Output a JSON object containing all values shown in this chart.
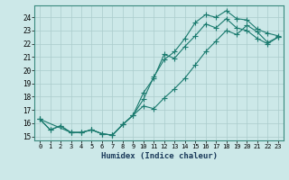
{
  "xlabel": "Humidex (Indice chaleur)",
  "bg_color": "#cce8e8",
  "line_color": "#1a7a6e",
  "grid_color": "#aacccc",
  "xlim": [
    -0.5,
    23.5
  ],
  "ylim": [
    14.7,
    24.9
  ],
  "yticks": [
    15,
    16,
    17,
    18,
    19,
    20,
    21,
    22,
    23,
    24
  ],
  "xticks": [
    0,
    1,
    2,
    3,
    4,
    5,
    6,
    7,
    8,
    9,
    10,
    11,
    12,
    13,
    14,
    15,
    16,
    17,
    18,
    19,
    20,
    21,
    22,
    23
  ],
  "series1_x": [
    0,
    1,
    2,
    3,
    4,
    5,
    6,
    7,
    8,
    9,
    10,
    11,
    12,
    13,
    14,
    15,
    16,
    17,
    18,
    19,
    20,
    21,
    22,
    23
  ],
  "series1_y": [
    16.3,
    15.5,
    15.8,
    15.3,
    15.3,
    15.5,
    15.2,
    15.1,
    15.9,
    16.6,
    17.8,
    19.5,
    20.8,
    21.4,
    22.4,
    23.6,
    24.2,
    24.0,
    24.5,
    23.9,
    23.8,
    23.1,
    22.8,
    22.6
  ],
  "series2_x": [
    0,
    1,
    2,
    3,
    4,
    5,
    6,
    7,
    8,
    9,
    10,
    11,
    12,
    13,
    14,
    15,
    16,
    17,
    18,
    19,
    20,
    21,
    22,
    23
  ],
  "series2_y": [
    16.3,
    15.5,
    15.8,
    15.3,
    15.3,
    15.5,
    15.2,
    15.1,
    15.9,
    16.6,
    18.3,
    19.4,
    21.2,
    20.9,
    21.8,
    22.6,
    23.5,
    23.2,
    23.9,
    23.2,
    23.0,
    22.4,
    22.0,
    22.5
  ],
  "series3_x": [
    0,
    3,
    4,
    5,
    6,
    7,
    8,
    9,
    10,
    11,
    12,
    13,
    14,
    15,
    16,
    17,
    18,
    19,
    20,
    21,
    22,
    23
  ],
  "series3_y": [
    16.3,
    15.3,
    15.3,
    15.5,
    15.2,
    15.1,
    15.9,
    16.6,
    17.3,
    17.1,
    17.9,
    18.6,
    19.4,
    20.4,
    21.4,
    22.2,
    23.0,
    22.7,
    23.4,
    22.9,
    22.1,
    22.5
  ]
}
